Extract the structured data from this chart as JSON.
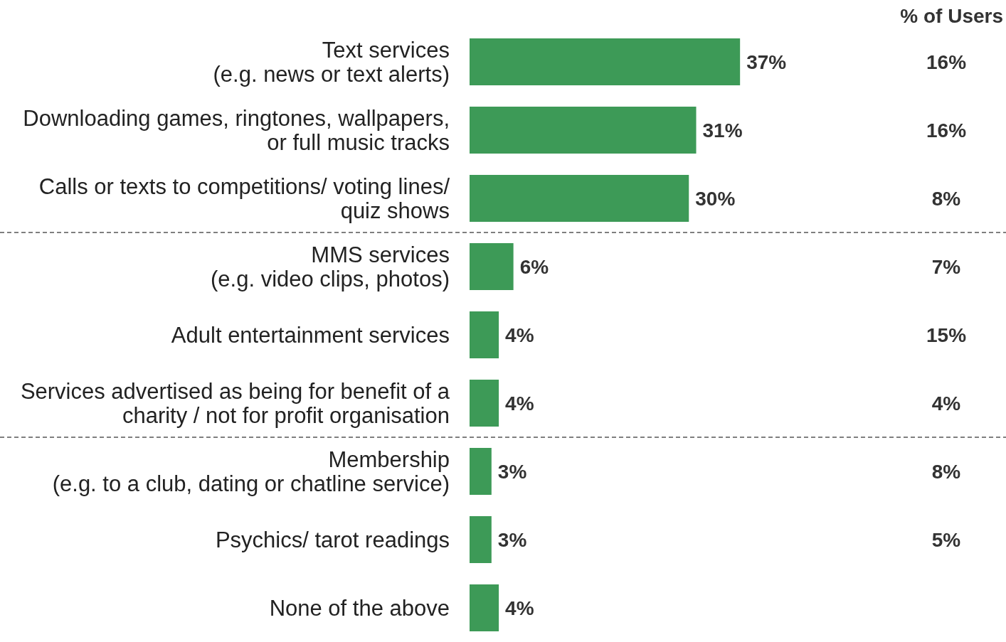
{
  "chart_data": {
    "type": "bar",
    "orientation": "horizontal",
    "categories": [
      "Text services\n(e.g. news or text alerts)",
      "Downloading games, ringtones, wallpapers,\nor full music tracks",
      "Calls or texts to competitions/ voting lines/\nquiz shows",
      "MMS services\n(e.g. video clips, photos)",
      "Adult entertainment services",
      "Services advertised as being for benefit of a\ncharity / not for profit organisation",
      "Membership\n(e.g. to a club, dating or chatline service)",
      "Psychics/ tarot readings",
      "None of the above"
    ],
    "series": [
      {
        "color": "#3d9a57",
        "values": [
          37,
          31,
          30,
          6,
          4,
          4,
          3,
          3,
          4
        ],
        "value_labels": [
          "37%",
          "31%",
          "30%",
          "6%",
          "4%",
          "4%",
          "3%",
          "3%",
          "4%"
        ]
      }
    ],
    "annotations": [
      "% of Users",
      "16%",
      "16%",
      "8%",
      "7%",
      "15%",
      "4%",
      "8%",
      "5%"
    ]
  }
}
